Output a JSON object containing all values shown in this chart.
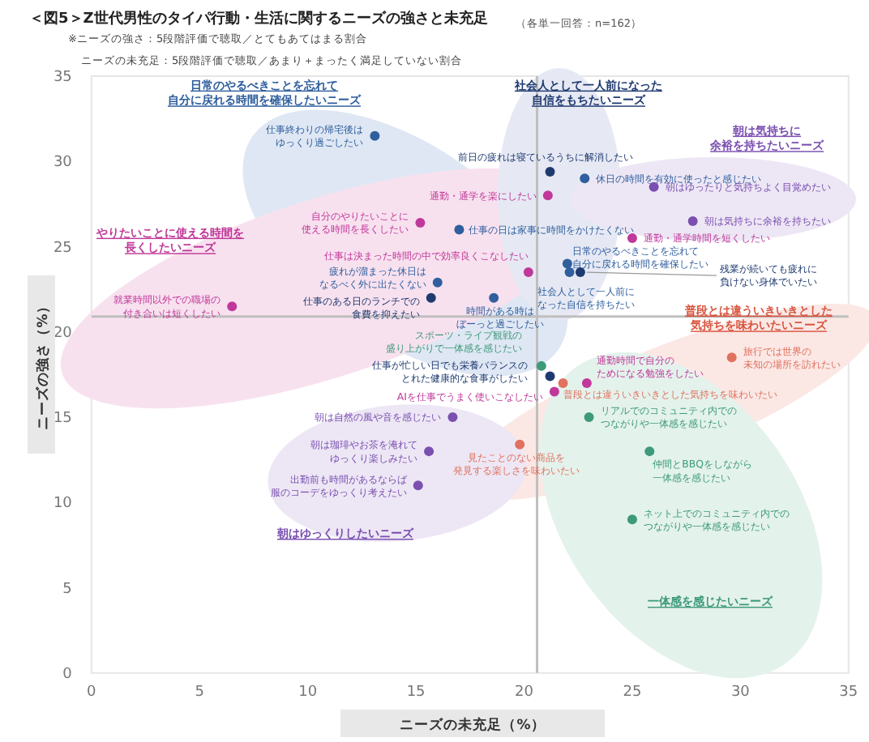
{
  "chart_data": {
    "type": "scatter",
    "title": "＜図5＞Z世代男性のタイパ行動・生活に関するニーズの強さと未充足",
    "subtitle": "※ニーズの強さ：5段階評価で聴取／とてもあてはまる割合",
    "xlabel": "ニーズの未充足（%）",
    "ylabel": "ニーズの強さ（%）",
    "xlim": [
      0,
      35
    ],
    "ylim": [
      0,
      35
    ],
    "xticks": [
      0,
      5,
      10,
      15,
      20,
      25,
      30,
      35
    ],
    "yticks": [
      0,
      5,
      10,
      15,
      20,
      25,
      30,
      35
    ],
    "marker": "circle",
    "x": [
      13.1,
      15.2,
      17.0,
      20.2,
      16.0,
      15.7,
      18.6,
      6.5,
      21.2,
      22.8,
      21.1,
      26.0,
      27.8,
      25.0,
      22.0,
      22.1,
      22.6,
      20.8,
      21.2,
      21.4,
      22.9,
      21.8,
      29.6,
      23.0,
      25.8,
      25.0,
      19.8,
      16.7,
      15.6,
      15.1
    ],
    "values": [
      31.5,
      26.4,
      26.0,
      23.5,
      22.9,
      22.0,
      22.0,
      21.5,
      29.4,
      29.0,
      28.0,
      28.5,
      26.5,
      25.5,
      24.0,
      23.5,
      23.5,
      18.0,
      17.4,
      16.5,
      17.0,
      17.0,
      18.5,
      15.0,
      13.0,
      9.0,
      13.4,
      15.0,
      13.0,
      11.0
    ],
    "colors": [
      "#2f5f9e",
      "#c0399a",
      "#2f5f9e",
      "#c0399a",
      "#2f5f9e",
      "#1f3a70",
      "#2f5f9e",
      "#c0399a",
      "#1f3a70",
      "#2f5f9e",
      "#c0399a",
      "#7a4fb0",
      "#7a4fb0",
      "#c0399a",
      "#2f5f9e",
      "#2f5f9e",
      "#1f3a70",
      "#3d9a7a",
      "#1f3a70",
      "#c0399a",
      "#c0399a",
      "#e0725f",
      "#e0725f",
      "#3d9a7a",
      "#3d9a7a",
      "#3d9a7a",
      "#e0725f",
      "#7a4fb0",
      "#7a4fb0",
      "#7a4fb0"
    ],
    "ref_lines": [
      {
        "axis": "x",
        "value": 20.6,
        "color": "#bfbfbf"
      },
      {
        "axis": "y",
        "value": 20.9,
        "color": "#bfbfbf"
      }
    ],
    "annotations": [
      "（各単一回答：n=162）",
      "ニーズの未充足：5段階評価で聴取／あまり＋まったく満足していない割合",
      "日常のやるべきことを忘れて自分に戻れる時間を確保したいニーズ",
      "社会人として一人前になった自信をもちたいニーズ",
      "朝は気持ちに余裕を持ちたいニーズ",
      "やりたいことに使える時間を長くしたいニーズ",
      "普段とは違ういきいきとした気持ちを味わいたいニーズ",
      "朝はゆっくりしたいニーズ",
      "一体感を感じたいニーズ",
      {
        "text": "仕事終わりの帰宅後はゆっくり過ごしたい",
        "x": 13.1,
        "y": 31.5
      },
      {
        "text": "自分のやりたいことに使える時間を長くしたい",
        "x": 15.2,
        "y": 26.4
      },
      {
        "text": "仕事の日は家事に時間をかけたくない",
        "x": 17.0,
        "y": 26.0
      },
      {
        "text": "仕事は決まった時間の中で効率良くこなしたい",
        "x": 20.2,
        "y": 23.5
      },
      {
        "text": "疲れが溜まった休日はなるべく外に出たくない",
        "x": 16.0,
        "y": 22.9
      },
      {
        "text": "仕事のある日のランチでの食費を抑えたい",
        "x": 15.7,
        "y": 22.0
      },
      {
        "text": "時間がある時はぼーっと過ごしたい",
        "x": 18.6,
        "y": 22.0
      },
      {
        "text": "就業時間以外での職場の付き合いは短くしたい",
        "x": 6.5,
        "y": 21.5
      },
      {
        "text": "前日の疲れは寝ているうちに解消したい",
        "x": 21.2,
        "y": 29.4
      },
      {
        "text": "休日の時間を有効に使ったと感じたい",
        "x": 22.8,
        "y": 29.0
      },
      {
        "text": "通勤・通学を楽にしたい",
        "x": 21.1,
        "y": 28.0
      },
      {
        "text": "朝はゆったりと気持ちよく目覚めたい",
        "x": 26.0,
        "y": 28.5
      },
      {
        "text": "朝は気持ちに余裕を持ちたい",
        "x": 27.8,
        "y": 26.5
      },
      {
        "text": "通勤・通学時間を短くしたい",
        "x": 25.0,
        "y": 25.5
      },
      {
        "text": "日常のやるべきことを忘れて自分に戻れる時間を確保したい",
        "x": 22.0,
        "y": 24.0
      },
      {
        "text": "社会人として一人前になった自信を持ちたい",
        "x": 22.1,
        "y": 23.5
      },
      {
        "text": "残業が続いても疲れに負けない身体でいたい",
        "x": 22.6,
        "y": 23.5
      },
      {
        "text": "スポーツ・ライブ観戦の盛り上がりで一体感を感じたい",
        "x": 20.8,
        "y": 18.0
      },
      {
        "text": "仕事が忙しい日でも栄養バランスのとれた健康的な食事がしたい",
        "x": 21.2,
        "y": 17.4
      },
      {
        "text": "AIを仕事でうまく使いこなしたい",
        "x": 21.4,
        "y": 16.5
      },
      {
        "text": "通勤時間で自分のためになる勉強をしたい",
        "x": 22.9,
        "y": 17.0
      },
      {
        "text": "普段とは違ういきいきとした気持ちを味わいたい",
        "x": 21.8,
        "y": 17.0
      },
      {
        "text": "旅行では世界の未知の場所を訪れたい",
        "x": 29.6,
        "y": 18.5
      },
      {
        "text": "リアルでのコミュニティ内でのつながりや一体感を感じたい",
        "x": 23.0,
        "y": 15.0
      },
      {
        "text": "仲間とBBQをしながら一体感を感じたい",
        "x": 25.8,
        "y": 13.0
      },
      {
        "text": "ネット上でのコミュニティ内でのつながりや一体感を感じたい",
        "x": 25.0,
        "y": 9.0
      },
      {
        "text": "見たことのない商品を発見する楽しさを味わいたい",
        "x": 19.8,
        "y": 13.4
      },
      {
        "text": "朝は自然の風や音を感じたい",
        "x": 16.7,
        "y": 15.0
      },
      {
        "text": "朝は珈琲やお茶を淹れてゆっくり楽しみたい",
        "x": 15.6,
        "y": 13.0
      },
      {
        "text": "出勤前も時間があるならば服のコーデをゆっくり考えたい",
        "x": 15.1,
        "y": 11.0
      }
    ]
  }
}
